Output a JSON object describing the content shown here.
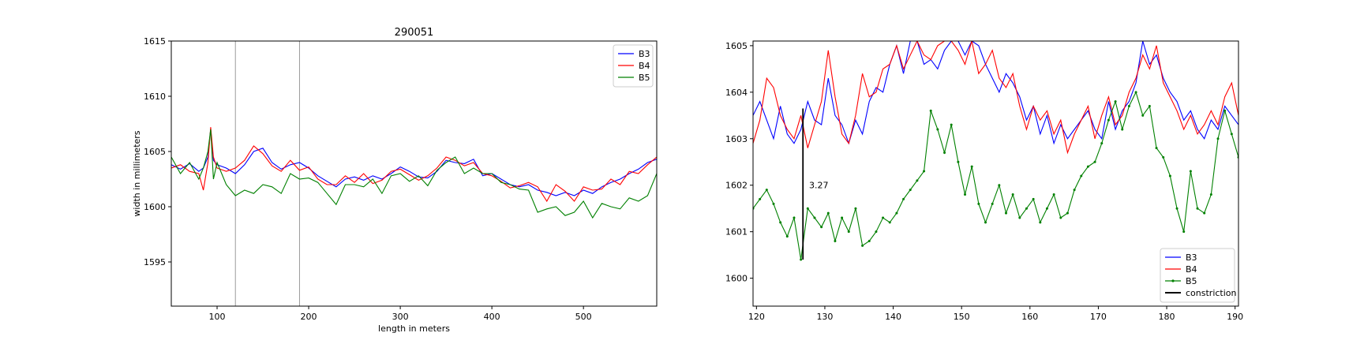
{
  "chart_data": [
    {
      "type": "line",
      "title": "290051",
      "xlabel": "length in meters",
      "ylabel": "width in millimeters",
      "xlim": [
        50,
        580
      ],
      "ylim": [
        1591,
        1615
      ],
      "xticks": [
        100,
        200,
        300,
        400,
        500
      ],
      "yticks": [
        1595,
        1600,
        1605,
        1610,
        1615
      ],
      "vlines": [
        120,
        190
      ],
      "grid": false,
      "legend_position": "top-right",
      "series": [
        {
          "name": "B3",
          "color": "#0000ff",
          "x": [
            50,
            60,
            70,
            80,
            85,
            90,
            93,
            96,
            100,
            110,
            120,
            130,
            140,
            150,
            160,
            170,
            180,
            190,
            200,
            210,
            220,
            230,
            240,
            250,
            260,
            270,
            280,
            290,
            300,
            310,
            320,
            330,
            340,
            350,
            360,
            370,
            380,
            390,
            400,
            410,
            420,
            430,
            440,
            450,
            460,
            470,
            480,
            490,
            500,
            510,
            520,
            530,
            540,
            550,
            560,
            570,
            580
          ],
          "values": [
            1603.8,
            1603.4,
            1603.9,
            1603.2,
            1603.5,
            1604.5,
            1607.0,
            1604.2,
            1603.8,
            1603.5,
            1603.0,
            1603.8,
            1605.0,
            1605.3,
            1604.0,
            1603.4,
            1603.8,
            1604.0,
            1603.5,
            1602.8,
            1602.3,
            1601.8,
            1602.5,
            1602.7,
            1602.4,
            1602.8,
            1602.5,
            1603.0,
            1603.6,
            1603.2,
            1602.7,
            1602.6,
            1603.2,
            1604.2,
            1604.0,
            1603.9,
            1604.3,
            1602.8,
            1603.0,
            1602.5,
            1602.0,
            1601.8,
            1602.0,
            1601.5,
            1601.3,
            1601.0,
            1601.3,
            1601.0,
            1601.5,
            1601.2,
            1601.8,
            1602.2,
            1602.5,
            1603.0,
            1603.4,
            1604.0,
            1604.3
          ]
        },
        {
          "name": "B4",
          "color": "#ff0000",
          "x": [
            50,
            60,
            70,
            80,
            85,
            90,
            93,
            96,
            100,
            110,
            120,
            130,
            140,
            150,
            160,
            170,
            180,
            190,
            200,
            210,
            220,
            230,
            240,
            250,
            260,
            270,
            280,
            290,
            300,
            310,
            320,
            330,
            340,
            350,
            360,
            370,
            380,
            390,
            400,
            410,
            420,
            430,
            440,
            450,
            460,
            470,
            480,
            490,
            500,
            510,
            520,
            530,
            540,
            550,
            560,
            570,
            580
          ],
          "values": [
            1603.5,
            1603.8,
            1603.2,
            1603.0,
            1601.5,
            1604.0,
            1607.2,
            1604.5,
            1603.5,
            1603.2,
            1603.5,
            1604.2,
            1605.5,
            1604.8,
            1603.7,
            1603.2,
            1604.2,
            1603.3,
            1603.6,
            1602.5,
            1602.0,
            1602.0,
            1602.8,
            1602.2,
            1603.0,
            1602.1,
            1602.4,
            1603.2,
            1603.4,
            1602.9,
            1602.4,
            1602.8,
            1603.5,
            1604.5,
            1604.2,
            1603.7,
            1604.0,
            1603.0,
            1602.8,
            1602.3,
            1601.7,
            1601.9,
            1602.2,
            1601.8,
            1600.5,
            1602.0,
            1601.4,
            1600.5,
            1601.8,
            1601.5,
            1601.6,
            1602.5,
            1602.0,
            1603.2,
            1603.0,
            1603.8,
            1604.5
          ]
        },
        {
          "name": "B5",
          "color": "#008000",
          "x": [
            50,
            60,
            70,
            80,
            85,
            90,
            93,
            96,
            100,
            110,
            120,
            130,
            140,
            150,
            160,
            170,
            180,
            190,
            200,
            210,
            220,
            230,
            240,
            250,
            260,
            270,
            280,
            290,
            300,
            310,
            320,
            330,
            340,
            350,
            360,
            370,
            380,
            390,
            400,
            410,
            420,
            430,
            440,
            450,
            460,
            470,
            480,
            490,
            500,
            510,
            520,
            530,
            540,
            550,
            560,
            570,
            580
          ],
          "values": [
            1604.5,
            1603.0,
            1604.0,
            1602.5,
            1603.5,
            1605.0,
            1607.0,
            1602.5,
            1604.0,
            1602.0,
            1601.0,
            1601.5,
            1601.2,
            1602.0,
            1601.8,
            1601.2,
            1603.0,
            1602.5,
            1602.6,
            1602.2,
            1601.2,
            1600.2,
            1602.0,
            1602.0,
            1601.8,
            1602.5,
            1601.2,
            1602.8,
            1603.0,
            1602.3,
            1602.8,
            1601.9,
            1603.3,
            1604.0,
            1604.5,
            1603.0,
            1603.5,
            1603.0,
            1603.0,
            1602.2,
            1602.0,
            1601.6,
            1601.5,
            1599.5,
            1599.8,
            1600.0,
            1599.2,
            1599.5,
            1600.5,
            1599.0,
            1600.3,
            1600.0,
            1599.8,
            1600.8,
            1600.5,
            1601.0,
            1603.0
          ]
        }
      ]
    },
    {
      "type": "line",
      "title": "",
      "xlabel": "",
      "ylabel": "",
      "xlim": [
        119.5,
        190.5
      ],
      "ylim": [
        1599.4,
        1605.1
      ],
      "xticks": [
        120,
        130,
        140,
        150,
        160,
        170,
        180,
        190
      ],
      "yticks": [
        1600,
        1601,
        1602,
        1603,
        1604,
        1605
      ],
      "grid": false,
      "legend_position": "bottom-right",
      "annotation": {
        "text": "3.27",
        "x": 127.7,
        "y": 1602.0
      },
      "constriction": {
        "name": "constriction",
        "color": "#000000",
        "x": 126.8,
        "y_from": 1600.4,
        "y_to": 1603.65
      },
      "series": [
        {
          "name": "B3",
          "color": "#0000ff",
          "markers": false,
          "x": [
            119.5,
            120.5,
            121.5,
            122.5,
            123.5,
            124.5,
            125.5,
            126.5,
            127.5,
            128.5,
            129.5,
            130.5,
            131.5,
            132.5,
            133.5,
            134.5,
            135.5,
            136.5,
            137.5,
            138.5,
            139.5,
            140.5,
            141.5,
            142.5,
            143.5,
            144.5,
            145.5,
            146.5,
            147.5,
            148.5,
            149.5,
            150.5,
            151.5,
            152.5,
            153.5,
            154.5,
            155.5,
            156.5,
            157.5,
            158.5,
            159.5,
            160.5,
            161.5,
            162.5,
            163.5,
            164.5,
            165.5,
            166.5,
            167.5,
            168.5,
            169.5,
            170.5,
            171.5,
            172.5,
            173.5,
            174.5,
            175.5,
            176.5,
            177.5,
            178.5,
            179.5,
            180.5,
            181.5,
            182.5,
            183.5,
            184.5,
            185.5,
            186.5,
            187.5,
            188.5,
            189.5,
            190.5
          ],
          "values": [
            1603.5,
            1603.8,
            1603.4,
            1603.0,
            1603.7,
            1603.1,
            1602.9,
            1603.2,
            1603.8,
            1603.4,
            1603.3,
            1604.3,
            1603.5,
            1603.3,
            1602.9,
            1603.4,
            1603.1,
            1603.8,
            1604.1,
            1604.0,
            1604.6,
            1605.0,
            1604.4,
            1605.1,
            1605.1,
            1604.6,
            1604.7,
            1604.5,
            1604.9,
            1605.1,
            1605.1,
            1604.8,
            1605.1,
            1605.0,
            1604.6,
            1604.3,
            1604.0,
            1604.4,
            1604.2,
            1603.9,
            1603.4,
            1603.7,
            1603.1,
            1603.5,
            1602.9,
            1603.3,
            1603.0,
            1603.2,
            1603.4,
            1603.6,
            1603.2,
            1603.0,
            1603.8,
            1603.2,
            1603.6,
            1603.8,
            1604.2,
            1605.1,
            1604.6,
            1604.8,
            1604.3,
            1604.0,
            1603.8,
            1603.4,
            1603.6,
            1603.2,
            1603.0,
            1603.4,
            1603.2,
            1603.7,
            1603.5,
            1603.3
          ]
        },
        {
          "name": "B4",
          "color": "#ff0000",
          "markers": false,
          "x": [
            119.5,
            120.5,
            121.5,
            122.5,
            123.5,
            124.5,
            125.5,
            126.5,
            127.5,
            128.5,
            129.5,
            130.5,
            131.5,
            132.5,
            133.5,
            134.5,
            135.5,
            136.5,
            137.5,
            138.5,
            139.5,
            140.5,
            141.5,
            142.5,
            143.5,
            144.5,
            145.5,
            146.5,
            147.5,
            148.5,
            149.5,
            150.5,
            151.5,
            152.5,
            153.5,
            154.5,
            155.5,
            156.5,
            157.5,
            158.5,
            159.5,
            160.5,
            161.5,
            162.5,
            163.5,
            164.5,
            165.5,
            166.5,
            167.5,
            168.5,
            169.5,
            170.5,
            171.5,
            172.5,
            173.5,
            174.5,
            175.5,
            176.5,
            177.5,
            178.5,
            179.5,
            180.5,
            181.5,
            182.5,
            183.5,
            184.5,
            185.5,
            186.5,
            187.5,
            188.5,
            189.5,
            190.5
          ],
          "values": [
            1602.9,
            1603.4,
            1604.3,
            1604.1,
            1603.5,
            1603.2,
            1603.0,
            1603.5,
            1602.8,
            1603.3,
            1603.8,
            1604.9,
            1603.9,
            1603.1,
            1602.9,
            1603.5,
            1604.4,
            1603.9,
            1604.0,
            1604.5,
            1604.6,
            1605.0,
            1604.5,
            1604.8,
            1605.1,
            1604.8,
            1604.7,
            1605.0,
            1605.1,
            1605.1,
            1604.9,
            1604.6,
            1605.1,
            1604.4,
            1604.6,
            1604.9,
            1604.3,
            1604.1,
            1604.4,
            1603.7,
            1603.2,
            1603.7,
            1603.4,
            1603.6,
            1603.1,
            1603.4,
            1602.7,
            1603.1,
            1603.4,
            1603.7,
            1603.0,
            1603.5,
            1603.9,
            1603.3,
            1603.5,
            1604.0,
            1604.3,
            1604.8,
            1604.5,
            1605.0,
            1604.2,
            1603.9,
            1603.6,
            1603.2,
            1603.5,
            1603.1,
            1603.3,
            1603.6,
            1603.3,
            1603.9,
            1604.2,
            1603.5
          ]
        },
        {
          "name": "B5",
          "color": "#008000",
          "markers": true,
          "x": [
            119.5,
            120.5,
            121.5,
            122.5,
            123.5,
            124.5,
            125.5,
            126.5,
            127.5,
            128.5,
            129.5,
            130.5,
            131.5,
            132.5,
            133.5,
            134.5,
            135.5,
            136.5,
            137.5,
            138.5,
            139.5,
            140.5,
            141.5,
            142.5,
            143.5,
            144.5,
            145.5,
            146.5,
            147.5,
            148.5,
            149.5,
            150.5,
            151.5,
            152.5,
            153.5,
            154.5,
            155.5,
            156.5,
            157.5,
            158.5,
            159.5,
            160.5,
            161.5,
            162.5,
            163.5,
            164.5,
            165.5,
            166.5,
            167.5,
            168.5,
            169.5,
            170.5,
            171.5,
            172.5,
            173.5,
            174.5,
            175.5,
            176.5,
            177.5,
            178.5,
            179.5,
            180.5,
            181.5,
            182.5,
            183.5,
            184.5,
            185.5,
            186.5,
            187.5,
            188.5,
            189.5,
            190.5
          ],
          "values": [
            1601.5,
            1601.7,
            1601.9,
            1601.6,
            1601.2,
            1600.9,
            1601.3,
            1600.4,
            1601.5,
            1601.3,
            1601.1,
            1601.4,
            1600.8,
            1601.3,
            1601.0,
            1601.5,
            1600.7,
            1600.8,
            1601.0,
            1601.3,
            1601.2,
            1601.4,
            1601.7,
            1601.9,
            1602.1,
            1602.3,
            1603.6,
            1603.2,
            1602.7,
            1603.3,
            1602.5,
            1601.8,
            1602.4,
            1601.6,
            1601.2,
            1601.6,
            1602.0,
            1601.4,
            1601.8,
            1601.3,
            1601.5,
            1601.7,
            1601.2,
            1601.5,
            1601.8,
            1601.3,
            1601.4,
            1601.9,
            1602.2,
            1602.4,
            1602.5,
            1602.9,
            1603.4,
            1603.8,
            1603.2,
            1603.7,
            1604.0,
            1603.5,
            1603.7,
            1602.8,
            1602.6,
            1602.2,
            1601.5,
            1601.0,
            1602.3,
            1601.5,
            1601.4,
            1601.8,
            1603.0,
            1603.6,
            1603.1,
            1602.6
          ]
        }
      ]
    }
  ]
}
